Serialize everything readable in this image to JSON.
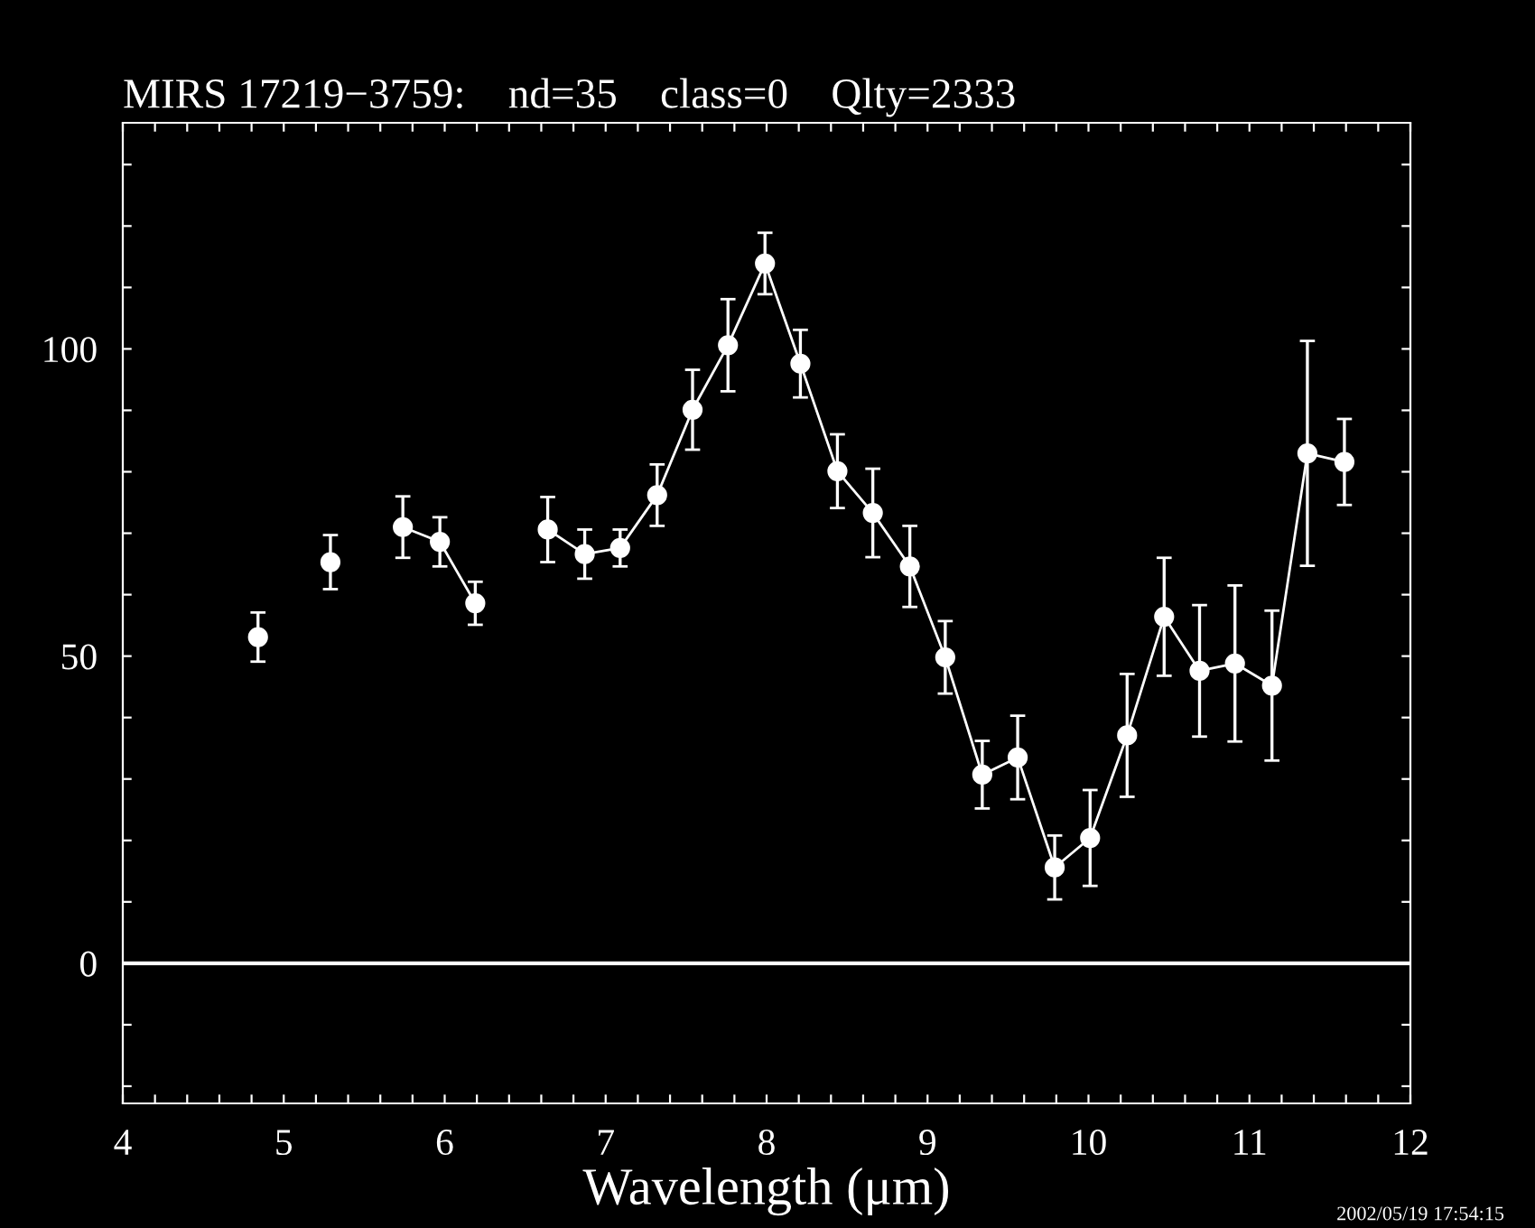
{
  "chart_data": {
    "type": "line",
    "title": "MIRS 17219−3759:    nd=35    class=0    Qlty=2333",
    "xlabel": "Wavelength (μm)",
    "series": [
      {
        "type": "scatter",
        "color": "#ffffff",
        "x": [
          4.84,
          5.29
        ],
        "values": [
          53.1,
          65.3
        ],
        "errors": [
          4,
          4.4
        ]
      },
      {
        "color": "#ffffff",
        "x": [
          5.74,
          5.97,
          6.19
        ],
        "values": [
          71.0,
          68.6,
          58.6
        ],
        "errors": [
          5,
          4,
          3.5
        ]
      },
      {
        "color": "#ffffff",
        "x": [
          6.64,
          6.87,
          7.09,
          7.32,
          7.54,
          7.76,
          7.99,
          8.21,
          8.44,
          8.66,
          8.89,
          9.11,
          9.34,
          9.56,
          9.79,
          10.01,
          10.24,
          10.47,
          10.69,
          10.91,
          11.14,
          11.36,
          11.59
        ],
        "values": [
          70.6,
          66.6,
          67.6,
          76.2,
          90.1,
          100.6,
          113.9,
          97.6,
          80.1,
          73.3,
          64.6,
          49.8,
          30.7,
          33.5,
          15.6,
          20.4,
          37.1,
          56.4,
          47.6,
          48.8,
          45.2,
          83.0,
          81.6
        ],
        "errors": [
          5.3,
          4,
          3,
          5,
          6.5,
          7.5,
          5,
          5.5,
          6,
          7.2,
          6.6,
          5.9,
          5.5,
          6.8,
          5.2,
          7.8,
          10,
          9.6,
          10.7,
          12.7,
          12.2,
          18.3,
          7
        ]
      }
    ],
    "marker": "circle",
    "line_style": "solid",
    "xlim": [
      4,
      12
    ],
    "ylim": [
      -22.8,
      136.8
    ],
    "xticks": [
      4,
      {
        "value": 4.2,
        "label": null
      },
      {
        "value": 4.4,
        "label": null
      },
      {
        "value": 4.6,
        "label": null
      },
      {
        "value": 4.8,
        "label": null
      },
      5,
      {
        "value": 5.2,
        "label": null
      },
      {
        "value": 5.4,
        "label": null
      },
      {
        "value": 5.6,
        "label": null
      },
      {
        "value": 5.8,
        "label": null
      },
      6,
      {
        "value": 6.2,
        "label": null
      },
      {
        "value": 6.4,
        "label": null
      },
      {
        "value": 6.6,
        "label": null
      },
      {
        "value": 6.8,
        "label": null
      },
      7,
      {
        "value": 7.2,
        "label": null
      },
      {
        "value": 7.4,
        "label": null
      },
      {
        "value": 7.6,
        "label": null
      },
      {
        "value": 7.8,
        "label": null
      },
      8,
      {
        "value": 8.2,
        "label": null
      },
      {
        "value": 8.4,
        "label": null
      },
      {
        "value": 8.6,
        "label": null
      },
      {
        "value": 8.8,
        "label": null
      },
      9,
      {
        "value": 9.2,
        "label": null
      },
      {
        "value": 9.4,
        "label": null
      },
      {
        "value": 9.6,
        "label": null
      },
      {
        "value": 9.8,
        "label": null
      },
      10,
      {
        "value": 10.2,
        "label": null
      },
      {
        "value": 10.4,
        "label": null
      },
      {
        "value": 10.6,
        "label": null
      },
      {
        "value": 10.8,
        "label": null
      },
      11,
      {
        "value": 11.2,
        "label": null
      },
      {
        "value": 11.4,
        "label": null
      },
      {
        "value": 11.6,
        "label": null
      },
      {
        "value": 11.8,
        "label": null
      },
      12
    ],
    "yticks": [
      {
        "value": -20,
        "label": null
      },
      {
        "value": -10,
        "label": null
      },
      0,
      {
        "value": 10,
        "label": null
      },
      {
        "value": 20,
        "label": null
      },
      {
        "value": 30,
        "label": null
      },
      {
        "value": 40,
        "label": null
      },
      50,
      {
        "value": 60,
        "label": null
      },
      {
        "value": 70,
        "label": null
      },
      {
        "value": 80,
        "label": null
      },
      {
        "value": 90,
        "label": null
      },
      100,
      {
        "value": 110,
        "label": null
      },
      {
        "value": 120,
        "label": null
      },
      {
        "value": 130,
        "label": null
      }
    ],
    "ref_lines": [
      {
        "axis": "y",
        "value": 0,
        "color": "#ffffff",
        "line_style": "solid"
      }
    ],
    "grid": false,
    "legend": false,
    "annotations": [
      "2002/05/19 17:54:15"
    ]
  }
}
